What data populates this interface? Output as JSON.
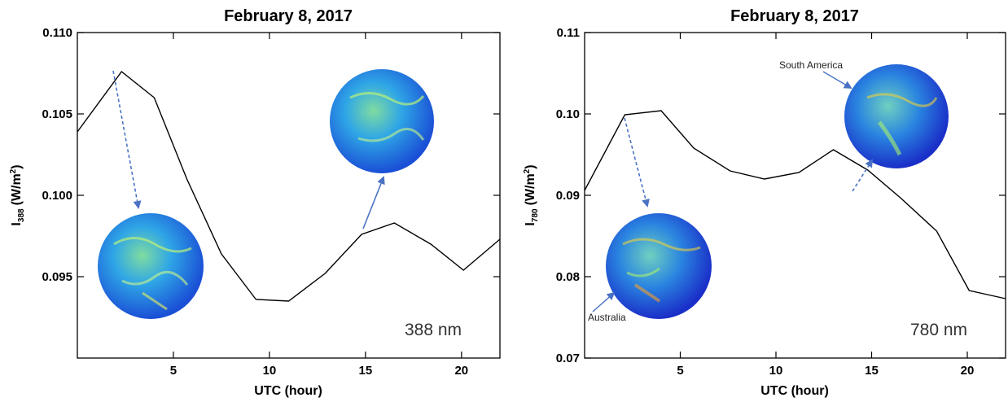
{
  "chart_data": [
    {
      "type": "line",
      "title": "February 8, 2017",
      "xlabel": "UTC (hour)",
      "ylabel": {
        "main": "I",
        "sub": "388",
        "unit_pre": "(W/m",
        "unit_sup": "2",
        "unit_post": ")"
      },
      "xlim": [
        0,
        22
      ],
      "ylim": [
        0.09,
        0.11
      ],
      "xticks": [
        5,
        10,
        15,
        20
      ],
      "xtick_labels": [
        "5",
        "10",
        "15",
        "20"
      ],
      "yticks": [
        0.095,
        0.1,
        0.105,
        0.11
      ],
      "ytick_labels": [
        "0.095",
        "0.100",
        "0.105",
        "0.110"
      ],
      "series": [
        {
          "color": "#000000",
          "x": [
            0,
            2.3,
            4.0,
            5.7,
            7.5,
            9.3,
            11.0,
            12.9,
            14.8,
            16.5,
            18.4,
            20.1,
            22.0
          ],
          "y": [
            0.1039,
            0.1076,
            0.106,
            0.101,
            0.0964,
            0.0936,
            0.0935,
            0.0952,
            0.0976,
            0.0983,
            0.097,
            0.0954,
            0.0973
          ]
        }
      ],
      "annotation": "388 nm",
      "grid": false
    },
    {
      "type": "line",
      "title": "February 8, 2017",
      "xlabel": "UTC (hour)",
      "ylabel": {
        "main": "I",
        "sub": "780",
        "unit_pre": "(W/m",
        "unit_sup": "2",
        "unit_post": ")"
      },
      "xlim": [
        0,
        22
      ],
      "ylim": [
        0.07,
        0.11
      ],
      "xticks": [
        5,
        10,
        15,
        20
      ],
      "xtick_labels": [
        "5",
        "10",
        "15",
        "20"
      ],
      "yticks": [
        0.07,
        0.08,
        0.09,
        0.1,
        0.11
      ],
      "ytick_labels": [
        "0.07",
        "0.08",
        "0.09",
        "0.10",
        "0.11"
      ],
      "series": [
        {
          "color": "#000000",
          "x": [
            0,
            2.1,
            4.0,
            5.7,
            7.6,
            9.4,
            11.2,
            13.0,
            14.8,
            16.5,
            18.4,
            20.1,
            22.0
          ],
          "y": [
            0.0906,
            0.0999,
            0.1004,
            0.0958,
            0.093,
            0.092,
            0.0928,
            0.0956,
            0.0931,
            0.0897,
            0.0856,
            0.0783,
            0.0773
          ]
        }
      ],
      "annotation": "780 nm",
      "labels": {
        "south_america": "South America",
        "australia": "Australia"
      },
      "grid": false
    }
  ],
  "colors": {
    "arrow": "#4a72c4",
    "globe_dark": "#1d3fd0",
    "globe_mid": "#2b9de0",
    "globe_light": "#8fe06a"
  }
}
